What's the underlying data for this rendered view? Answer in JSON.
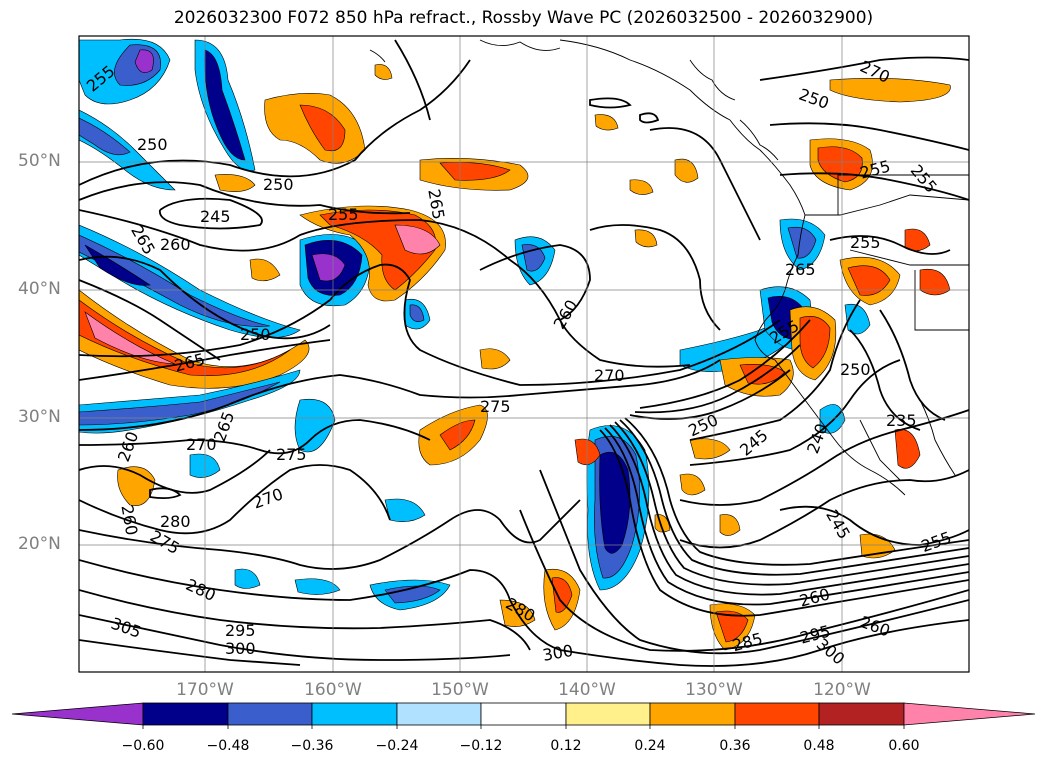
{
  "title": "2026032300 F072 850 hPa refract., Rossby Wave PC (2026032500 - 2026032900)",
  "map": {
    "lat_labels": [
      "50°N",
      "40°N",
      "30°N",
      "20°N"
    ],
    "lon_labels": [
      "170°W",
      "160°W",
      "150°W",
      "140°W",
      "130°W",
      "120°W"
    ],
    "contour_labels": [
      "255",
      "250",
      "250",
      "245",
      "255",
      "265",
      "260",
      "265",
      "260",
      "270",
      "275",
      "250",
      "245",
      "265",
      "255",
      "240",
      "235",
      "250",
      "245",
      "255",
      "260",
      "270",
      "275",
      "270",
      "265",
      "260",
      "280",
      "275",
      "280",
      "305",
      "295",
      "300",
      "280",
      "300",
      "285",
      "295",
      "300",
      "260",
      "260",
      "255",
      "270",
      "250",
      "250",
      "255",
      "255",
      "265"
    ]
  },
  "colorbar": {
    "ticks": [
      "−0.60",
      "−0.48",
      "−0.36",
      "−0.24",
      "−0.12",
      "0.12",
      "0.24",
      "0.36",
      "0.48",
      "0.60"
    ],
    "colors": [
      "#9932cc",
      "#00008b",
      "#3a5fcd",
      "#00bfff",
      "#b0e2ff",
      "#ffffff",
      "#fff08b",
      "#ffa500",
      "#ff4500",
      "#b22222",
      "#ff82ab"
    ]
  }
}
